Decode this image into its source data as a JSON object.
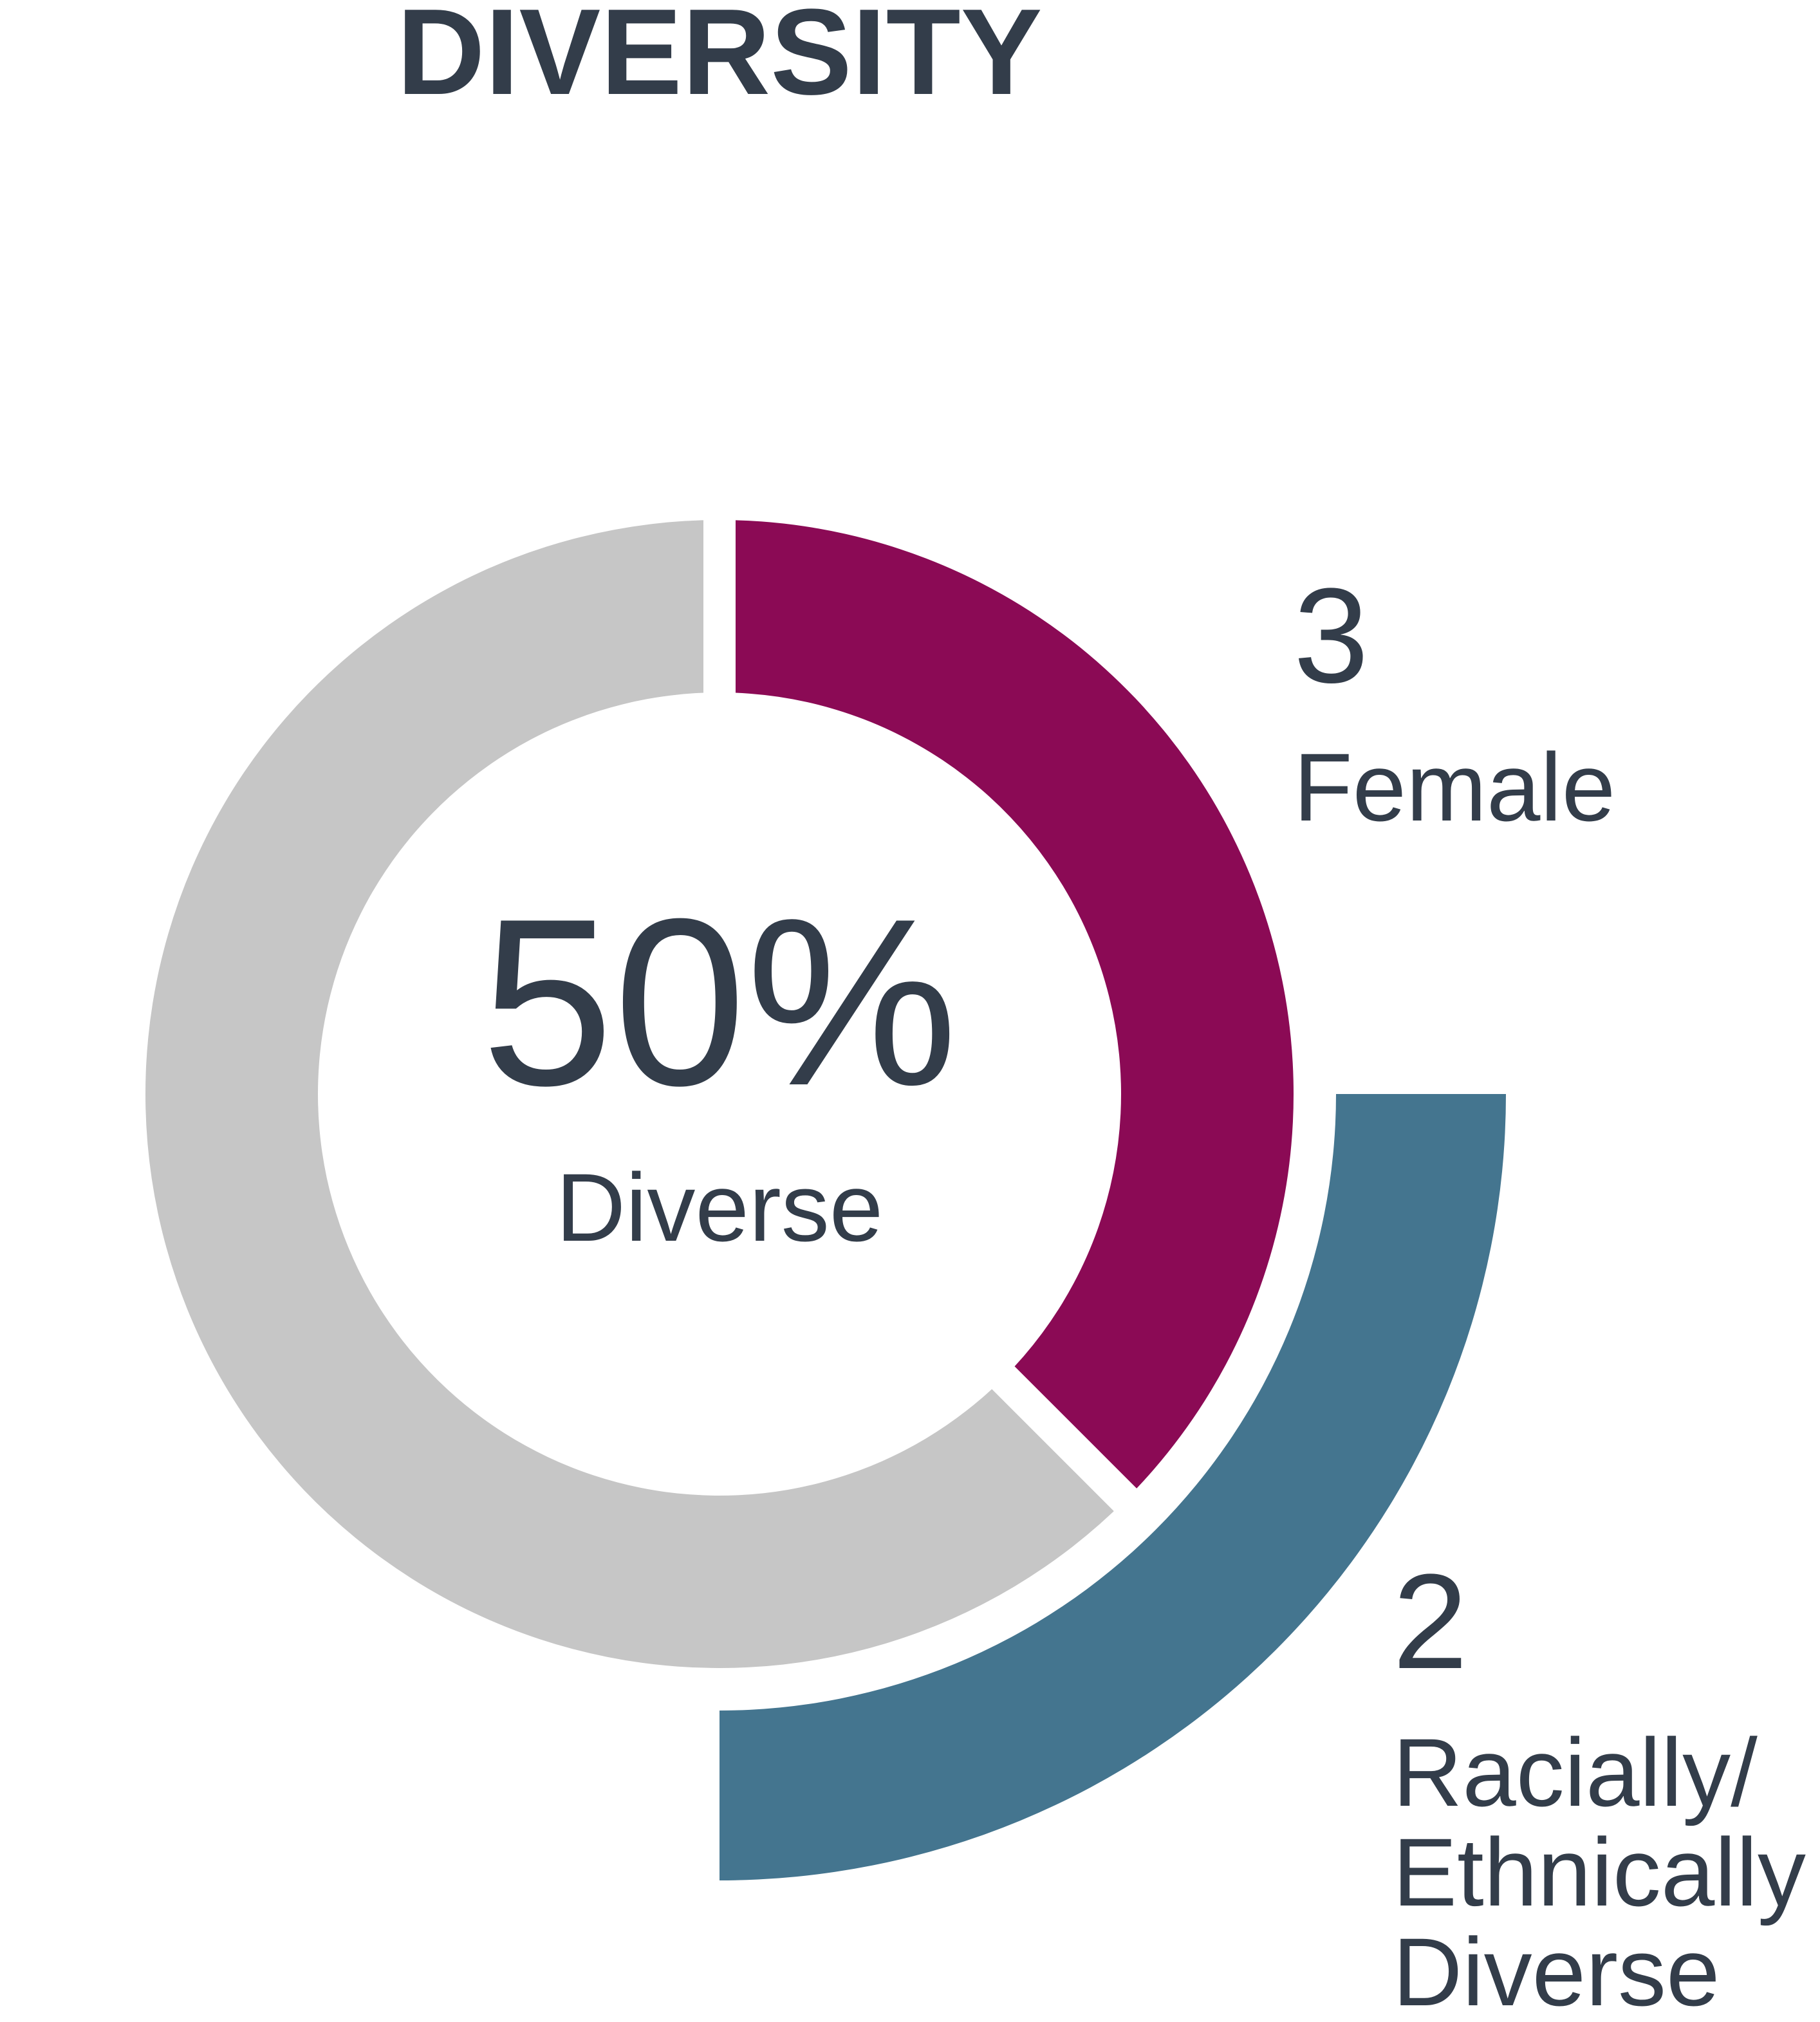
{
  "chart_data": {
    "type": "donut",
    "title": "DIVERSITY",
    "center_text": "50%",
    "center_label": "Diverse",
    "series": [
      {
        "ring": "inner",
        "categories": [
          "Female",
          null
        ],
        "values": [
          3,
          5
        ],
        "colors": [
          "#8b0a55",
          "#c6c6c6"
        ]
      },
      {
        "ring": "outer",
        "categories": [
          "Racially/ Ethnically Diverse"
        ],
        "values": [
          2
        ],
        "colors": [
          "#44758f"
        ]
      }
    ]
  }
}
